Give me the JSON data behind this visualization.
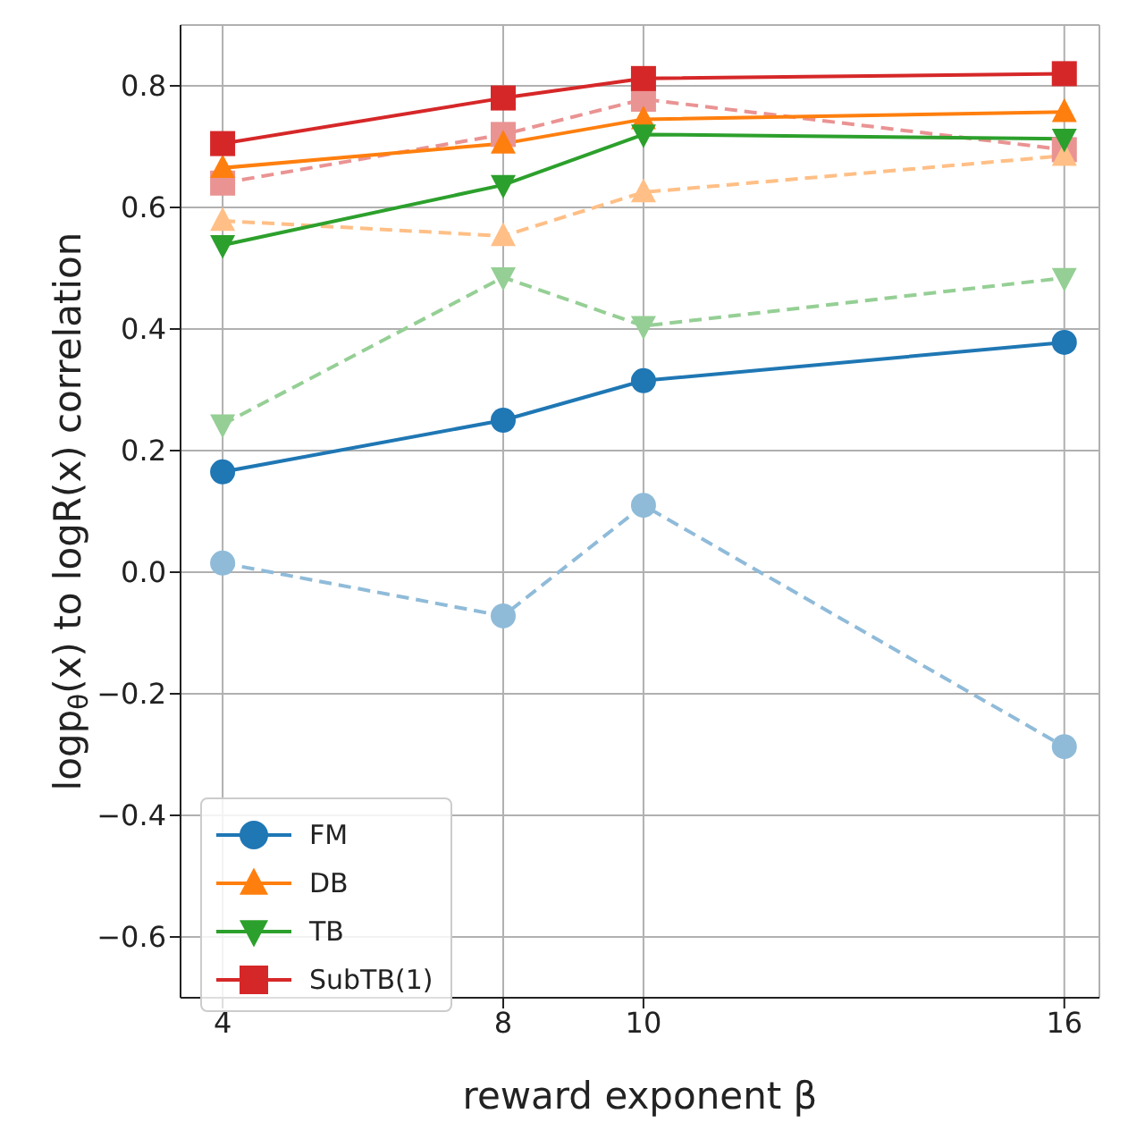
{
  "chart_data": {
    "type": "line",
    "xlabel": "reward exponent β",
    "ylabel": "logp$_{θ}$(x) to logR(x) correlation",
    "x": [
      4,
      8,
      10,
      16
    ],
    "xlim": [
      3.4,
      16.5
    ],
    "xticks": [
      4,
      8,
      10,
      16
    ],
    "ylim": [
      -0.7,
      0.9
    ],
    "yticks": [
      -0.6,
      -0.4,
      -0.2,
      {
        "value": 0,
        "label": "0.0"
      },
      0.2,
      0.4,
      0.6,
      0.8
    ],
    "grid": true,
    "legend": "bottom left",
    "series": [
      {
        "color": "#8fbbd9",
        "values": [
          0.015,
          -0.072,
          0.11,
          -0.287
        ],
        "marker": "circle",
        "line_style": "dashed"
      },
      {
        "color": "#95cf95",
        "values": [
          0.243,
          0.485,
          0.405,
          0.484
        ],
        "marker": "triangle_down",
        "line_style": "dashed"
      },
      {
        "color": "#ea9393",
        "values": [
          0.64,
          0.72,
          0.778,
          0.695
        ],
        "marker": "square",
        "line_style": "dashed"
      },
      {
        "color": "#ffbf86",
        "values": [
          0.578,
          0.553,
          0.625,
          0.685
        ],
        "marker": "triangle",
        "line_style": "dashed"
      },
      {
        "name": "FM",
        "color": "#1f77b4",
        "values": [
          0.165,
          0.25,
          0.315,
          0.378
        ],
        "marker": "circle",
        "line_style": "solid"
      },
      {
        "name": "DB",
        "color": "#ff7f0e",
        "values": [
          0.665,
          0.705,
          0.745,
          0.757
        ],
        "marker": "triangle",
        "line_style": "solid"
      },
      {
        "name": "TB",
        "color": "#2ca02c",
        "values": [
          0.538,
          0.637,
          0.72,
          0.713
        ],
        "marker": "triangle_down",
        "line_style": "solid"
      },
      {
        "name": "SubTB(1)",
        "color": "#d62728",
        "values": [
          0.705,
          0.78,
          0.812,
          0.82
        ],
        "marker": "square",
        "line_style": "solid"
      }
    ]
  }
}
